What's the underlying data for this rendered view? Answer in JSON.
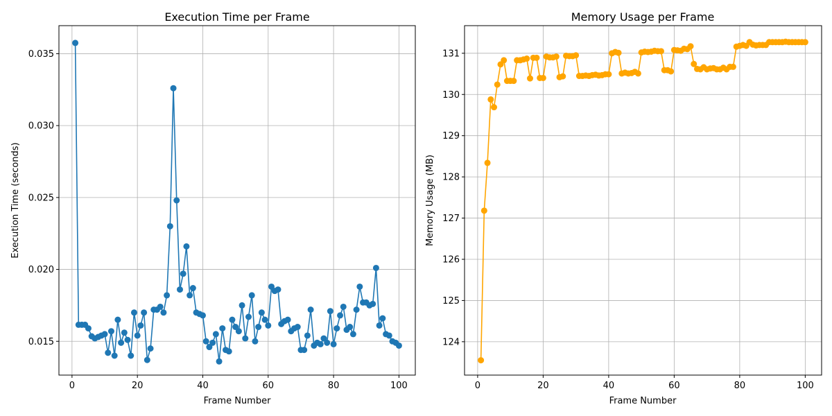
{
  "chart_data": [
    {
      "type": "line",
      "title": "Execution Time per Frame",
      "xlabel": "Frame Number",
      "ylabel": "Execution Time (seconds)",
      "xlim": [
        -4,
        105
      ],
      "ylim": [
        0.01265,
        0.03695
      ],
      "xticks": [
        0,
        20,
        40,
        60,
        80,
        100
      ],
      "xtick_labels": [
        "0",
        "20",
        "40",
        "60",
        "80",
        "100"
      ],
      "yticks": [
        0.015,
        0.02,
        0.025,
        0.03,
        0.035
      ],
      "ytick_labels": [
        "0.015",
        "0.020",
        "0.025",
        "0.030",
        "0.035"
      ],
      "grid": true,
      "color": "#1f77b4",
      "series": [
        {
          "x": [
            1,
            2,
            3,
            4,
            5,
            6,
            7,
            8,
            9,
            10,
            11,
            12,
            13,
            14,
            15,
            16,
            17,
            18,
            19,
            20,
            21,
            22,
            23,
            24,
            25,
            26,
            27,
            28,
            29,
            30,
            31,
            32,
            33,
            34,
            35,
            36,
            37,
            38,
            39,
            40,
            41,
            42,
            43,
            44,
            45,
            46,
            47,
            48,
            49,
            50,
            51,
            52,
            53,
            54,
            55,
            56,
            57,
            58,
            59,
            60,
            61,
            62,
            63,
            64,
            65,
            66,
            67,
            68,
            69,
            70,
            71,
            72,
            73,
            74,
            75,
            76,
            77,
            78,
            79,
            80,
            81,
            82,
            83,
            84,
            85,
            86,
            87,
            88,
            89,
            90,
            91,
            92,
            93,
            94,
            95,
            96,
            97,
            98,
            99,
            100
          ],
          "values": [
            0.03575,
            0.01615,
            0.01615,
            0.01615,
            0.0159,
            0.01535,
            0.0152,
            0.0153,
            0.0154,
            0.0155,
            0.0142,
            0.0157,
            0.014,
            0.0165,
            0.0149,
            0.0156,
            0.0151,
            0.014,
            0.017,
            0.0154,
            0.0161,
            0.017,
            0.0137,
            0.0145,
            0.0172,
            0.0172,
            0.0174,
            0.017,
            0.0182,
            0.023,
            0.0326,
            0.0248,
            0.0186,
            0.0197,
            0.0216,
            0.0182,
            0.0187,
            0.017,
            0.0169,
            0.0168,
            0.015,
            0.0146,
            0.0149,
            0.0155,
            0.0136,
            0.0159,
            0.0144,
            0.0143,
            0.0165,
            0.016,
            0.0157,
            0.0175,
            0.0152,
            0.0167,
            0.0182,
            0.015,
            0.016,
            0.017,
            0.0165,
            0.0161,
            0.0188,
            0.0185,
            0.0186,
            0.0162,
            0.0164,
            0.0165,
            0.0157,
            0.0159,
            0.016,
            0.0144,
            0.0144,
            0.0154,
            0.0172,
            0.0147,
            0.0149,
            0.0148,
            0.0152,
            0.0149,
            0.0171,
            0.0148,
            0.0159,
            0.0168,
            0.0174,
            0.0158,
            0.016,
            0.0155,
            0.0172,
            0.0188,
            0.0177,
            0.0177,
            0.0175,
            0.0176,
            0.0201,
            0.0161,
            0.0166,
            0.0155,
            0.0154,
            0.015,
            0.0149,
            0.0147
          ]
        }
      ]
    },
    {
      "type": "line",
      "title": "Memory Usage per Frame",
      "xlabel": "Frame Number",
      "ylabel": "Memory Usage (MB)",
      "xlim": [
        -4,
        105
      ],
      "ylim": [
        123.19,
        131.67
      ],
      "xticks": [
        0,
        20,
        40,
        60,
        80,
        100
      ],
      "xtick_labels": [
        "0",
        "20",
        "40",
        "60",
        "80",
        "100"
      ],
      "yticks": [
        124,
        125,
        126,
        127,
        128,
        129,
        130,
        131
      ],
      "ytick_labels": [
        "124",
        "125",
        "126",
        "127",
        "128",
        "129",
        "130",
        "131"
      ],
      "grid": true,
      "color": "#ffa500",
      "series": [
        {
          "x": [
            1,
            2,
            3,
            4,
            5,
            6,
            7,
            8,
            9,
            10,
            11,
            12,
            13,
            14,
            15,
            16,
            17,
            18,
            19,
            20,
            21,
            22,
            23,
            24,
            25,
            26,
            27,
            28,
            29,
            30,
            31,
            32,
            33,
            34,
            35,
            36,
            37,
            38,
            39,
            40,
            41,
            42,
            43,
            44,
            45,
            46,
            47,
            48,
            49,
            50,
            51,
            52,
            53,
            54,
            55,
            56,
            57,
            58,
            59,
            60,
            61,
            62,
            63,
            64,
            65,
            66,
            67,
            68,
            69,
            70,
            71,
            72,
            73,
            74,
            75,
            76,
            77,
            78,
            79,
            80,
            81,
            82,
            83,
            84,
            85,
            86,
            87,
            88,
            89,
            90,
            91,
            92,
            93,
            94,
            95,
            96,
            97,
            98,
            99,
            100
          ],
          "values": [
            123.55,
            127.18,
            128.34,
            129.88,
            129.69,
            130.24,
            130.73,
            130.83,
            130.33,
            130.33,
            130.33,
            130.83,
            130.83,
            130.85,
            130.87,
            130.39,
            130.89,
            130.89,
            130.4,
            130.4,
            130.92,
            130.9,
            130.9,
            130.92,
            130.42,
            130.44,
            130.94,
            130.93,
            130.93,
            130.95,
            130.45,
            130.45,
            130.46,
            130.45,
            130.47,
            130.48,
            130.46,
            130.47,
            130.49,
            130.49,
            131.0,
            131.03,
            131.01,
            130.51,
            130.53,
            130.51,
            130.52,
            130.55,
            130.51,
            131.02,
            131.04,
            131.03,
            131.04,
            131.06,
            131.05,
            131.05,
            130.59,
            130.59,
            130.56,
            131.08,
            131.07,
            131.06,
            131.11,
            131.1,
            131.17,
            130.74,
            130.62,
            130.61,
            130.66,
            130.61,
            130.63,
            130.64,
            130.61,
            130.61,
            130.65,
            130.61,
            130.67,
            130.67,
            131.16,
            131.18,
            131.2,
            131.18,
            131.27,
            131.21,
            131.19,
            131.2,
            131.2,
            131.2,
            131.27,
            131.27,
            131.27,
            131.27,
            131.27,
            131.28,
            131.27,
            131.27,
            131.27,
            131.27,
            131.27,
            131.27
          ]
        }
      ]
    }
  ]
}
